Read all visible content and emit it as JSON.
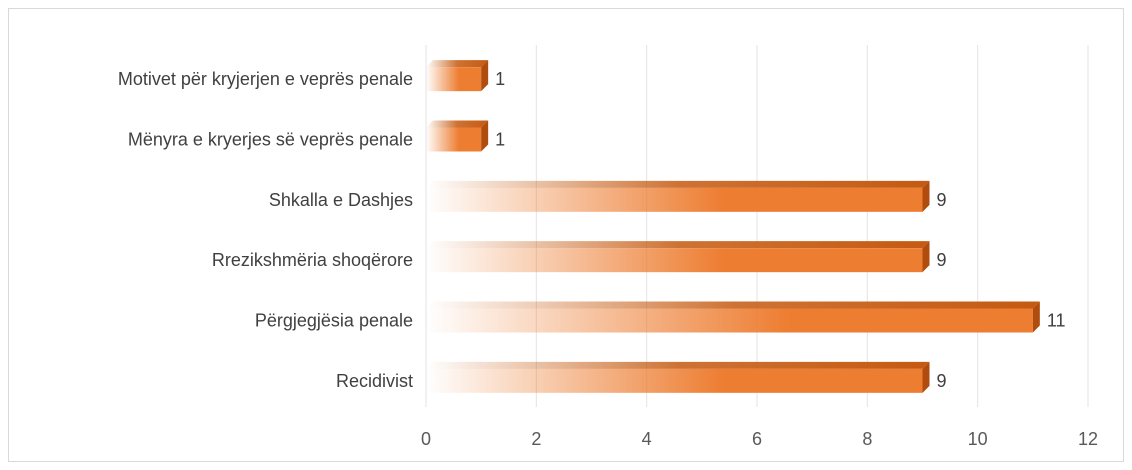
{
  "chart_data": {
    "type": "bar",
    "orientation": "horizontal",
    "categories": [
      "Motivet për kryjerjen e veprës penale",
      "Mënyra e kryerjes së veprës penale",
      "Shkalla e Dashjes",
      "Rrezikshmëria shoqërore",
      "Përgjegjësia penale",
      "Recidivist"
    ],
    "values": [
      1,
      1,
      9,
      9,
      11,
      9
    ],
    "xlim": [
      0,
      12
    ],
    "xticks": [
      "0",
      "2",
      "4",
      "6",
      "8",
      "10",
      "12"
    ],
    "title": "",
    "xlabel": "",
    "ylabel": "",
    "grid": "vertical",
    "legend": "none",
    "colors": {
      "bar": "#ed7d31",
      "bar_top": "#c55a11",
      "bar_side": "#b04d0e",
      "grid": "#e3e3e3"
    }
  }
}
